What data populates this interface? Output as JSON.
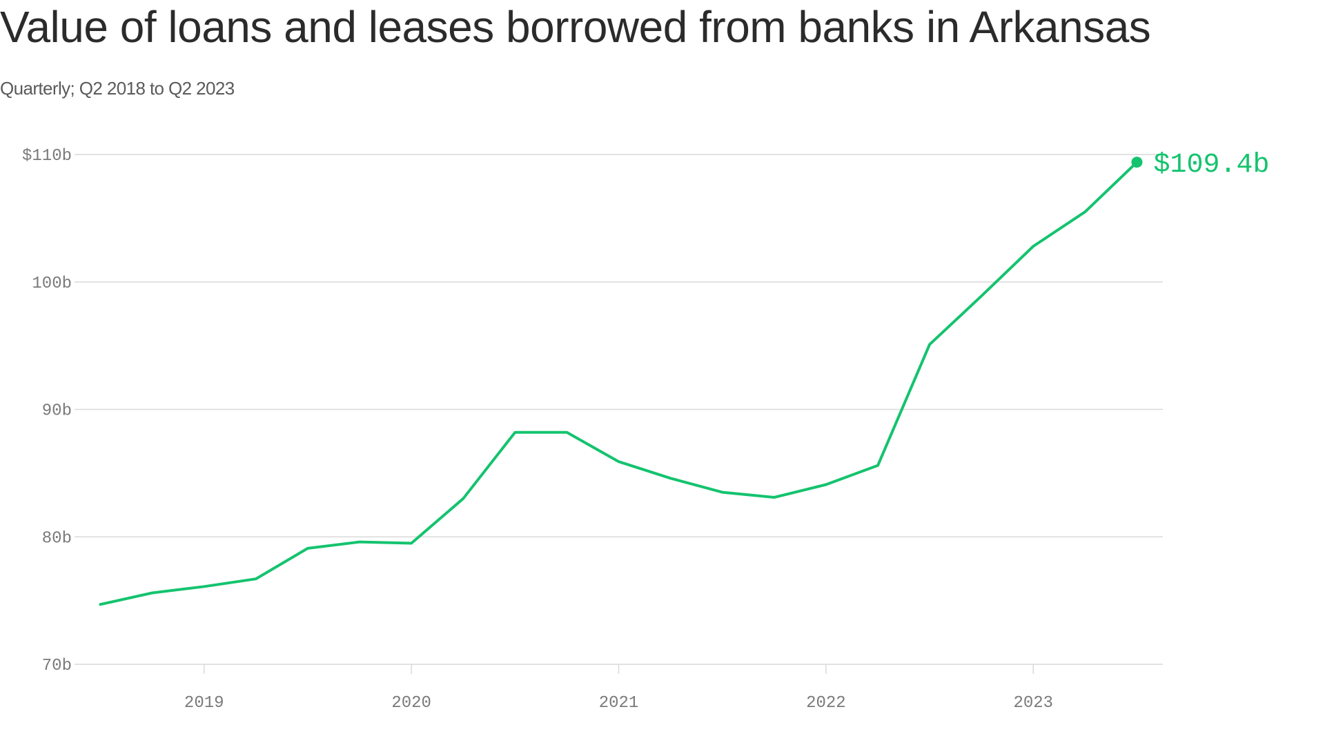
{
  "title": "Value of loans and leases borrowed from banks in Arkansas",
  "subtitle": "Quarterly; Q2 2018 to Q2 2023",
  "colors": {
    "line": "#14c36e",
    "grid": "#d9d9d9",
    "axis_text": "#7a7a7a",
    "title": "#2b2b2b"
  },
  "chart_data": {
    "type": "line",
    "title": "Value of loans and leases borrowed from banks in Arkansas",
    "subtitle": "Quarterly; Q2 2018 to Q2 2023",
    "xlabel": "",
    "ylabel": "",
    "ylim": [
      70,
      110
    ],
    "xlim": [
      2018.375,
      2023.625
    ],
    "y_ticks": [
      70,
      80,
      90,
      100,
      110
    ],
    "y_tick_labels": [
      "70b",
      "80b",
      "90b",
      "100b",
      "$110b"
    ],
    "x_ticks": [
      2019,
      2020,
      2021,
      2022,
      2023
    ],
    "x_tick_labels": [
      "2019",
      "2020",
      "2021",
      "2022",
      "2023"
    ],
    "grid": "horizontal",
    "legend": "none",
    "series": [
      {
        "x": [
          2018.5,
          2018.75,
          2019.0,
          2019.25,
          2019.5,
          2019.75,
          2020.0,
          2020.25,
          2020.5,
          2020.75,
          2021.0,
          2021.25,
          2021.5,
          2021.75,
          2022.0,
          2022.25,
          2022.5,
          2022.75,
          2023.0,
          2023.25,
          2023.5
        ],
        "values": [
          74.7,
          75.6,
          76.1,
          76.7,
          79.1,
          79.6,
          79.5,
          83.0,
          88.2,
          88.2,
          85.9,
          84.6,
          83.5,
          83.1,
          84.1,
          85.6,
          95.1,
          98.9,
          102.8,
          105.5,
          109.4
        ]
      }
    ],
    "annotations": [
      {
        "text": "$109.4b",
        "x": 2023.5,
        "y": 109.4
      }
    ]
  }
}
